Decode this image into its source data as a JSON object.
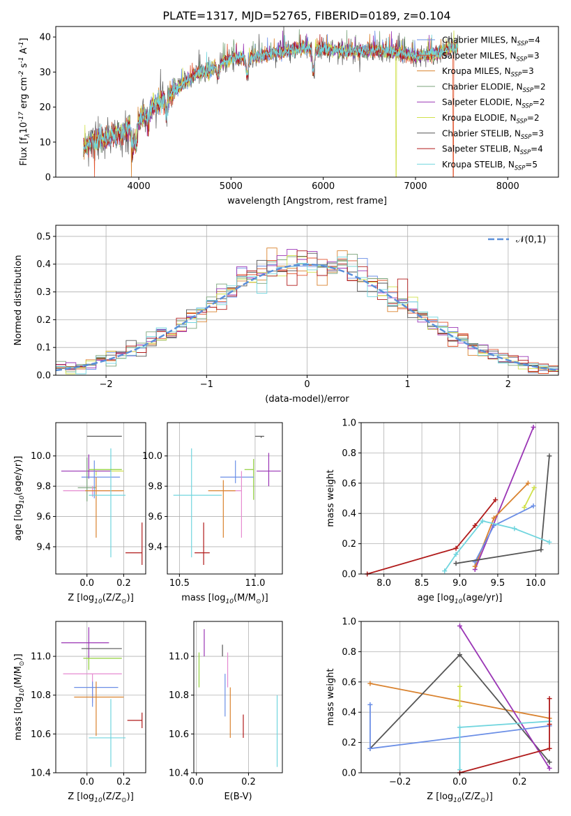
{
  "figure": {
    "title": "PLATE=1317, MJD=52765, FIBERID=0189, z=0.104"
  },
  "colors": {
    "Chabrier MILES": "#6a8ee6",
    "Salpeter MILES": "#e0522b",
    "Kroupa MILES": "#d9822e",
    "Chabrier ELODIE": "#7aa37a",
    "Salpeter ELODIE": "#9a35b5",
    "Kroupa ELODIE": "#cfe04a",
    "Chabrier STELIB": "#555555",
    "Salpeter STELIB": "#b01a1a",
    "Kroupa STELIB": "#70d5de",
    "gaussian": "#5b8fd9",
    "extra_pink": "#e58ad0",
    "extra_green": "#8fcf3a"
  },
  "chart_data": [
    {
      "id": "spectrum",
      "type": "line",
      "title": "PLATE=1317, MJD=52765, FIBERID=0189, z=0.104",
      "xlabel": "wavelength [Angstrom, rest frame]",
      "ylabel": "Flux [f$_\\lambda$10$^{-17}$ erg cm$^{-2}$ s$^{-1}$ A$^{-1}$]",
      "xlim": [
        3100,
        8550
      ],
      "ylim": [
        0,
        43
      ],
      "xticks": [
        4000,
        5000,
        6000,
        7000,
        8000
      ],
      "yticks": [
        0,
        10,
        20,
        30,
        40
      ],
      "legend_position": "upper right",
      "continuum": {
        "wavelength": [
          3400,
          3600,
          3800,
          4000,
          4200,
          4400,
          4600,
          4800,
          5000,
          5200,
          5400,
          5600,
          5800,
          6000,
          6200,
          6400,
          6600,
          6800,
          7000,
          7200,
          7400
        ],
        "flux": [
          9,
          11,
          12,
          16,
          21,
          25,
          29,
          31,
          34,
          34,
          35,
          36,
          37,
          36.5,
          36,
          36,
          36,
          35.5,
          34.5,
          35,
          37
        ]
      },
      "absorption_features": [
        {
          "wavelength": 3934,
          "depth": 7
        },
        {
          "wavelength": 3969,
          "depth": 6
        },
        {
          "wavelength": 4102,
          "depth": 3
        },
        {
          "wavelength": 4304,
          "depth": 5
        },
        {
          "wavelength": 4861,
          "depth": 3
        },
        {
          "wavelength": 5175,
          "depth": 5
        },
        {
          "wavelength": 5893,
          "depth": 7
        }
      ],
      "series": [
        {
          "name": "Chabrier MILES, N$_{SSP}$=4"
        },
        {
          "name": "Salpeter MILES, N$_{SSP}$=3"
        },
        {
          "name": "Kroupa MILES, N$_{SSP}$=3"
        },
        {
          "name": "Chabrier ELODIE, N$_{SSP}$=2"
        },
        {
          "name": "Salpeter ELODIE, N$_{SSP}$=2"
        },
        {
          "name": "Kroupa ELODIE, N$_{SSP}$=2"
        },
        {
          "name": "Chabrier STELIB, N$_{SSP}$=3"
        },
        {
          "name": "Salpeter STELIB, N$_{SSP}$=4"
        },
        {
          "name": "Kroupa STELIB, N$_{SSP}$=5"
        }
      ],
      "spikes_to_zero": [
        {
          "wavelength": 3520,
          "series": "Salpeter MILES"
        },
        {
          "wavelength": 3920,
          "series": "Kroupa MILES"
        },
        {
          "wavelength": 6790,
          "series": "Kroupa ELODIE"
        },
        {
          "wavelength": 7410,
          "series": "Salpeter MILES"
        }
      ]
    },
    {
      "id": "residuals",
      "type": "histogram",
      "xlabel": "(data-model)/error",
      "ylabel": "Normed distribution",
      "xlim": [
        -2.5,
        2.5
      ],
      "ylim": [
        0,
        0.54
      ],
      "xticks": [
        -2,
        -1,
        0,
        1,
        2
      ],
      "yticks": [
        0.0,
        0.1,
        0.2,
        0.3,
        0.4,
        0.5
      ],
      "grid": true,
      "legend_position": "upper right",
      "reference_curve": {
        "name": "$\\mathcal{N}(0,1)$",
        "style": "dashed",
        "mu": 0,
        "sigma": 1
      },
      "bin_width": 0.1,
      "bin_range": [
        -2.5,
        2.5
      ]
    },
    {
      "id": "age_vs_Z",
      "type": "errorbar",
      "xlabel": "Z [log$_{10}$(Z/Z$_\\odot$)]",
      "ylabel": "age  [log$_{10}$(age/yr)]",
      "xlim": [
        -0.17,
        0.32
      ],
      "ylim": [
        9.22,
        10.22
      ],
      "xticks": [
        0.0,
        0.2
      ],
      "yticks": [
        9.4,
        9.6,
        9.8,
        10.0
      ],
      "grid": true,
      "points": [
        {
          "x": 0.0,
          "y": 10.13,
          "xerr": [
            0.0,
            0.19
          ],
          "yerr": [
            0.0,
            0.0
          ],
          "color": "Chabrier STELIB"
        },
        {
          "x": 0.05,
          "y": 9.9,
          "xerr": [
            0.04,
            0.15
          ],
          "yerr": [
            0.03,
            0.0
          ],
          "color": "Kroupa ELODIE"
        },
        {
          "x": 0.01,
          "y": 9.9,
          "xerr": [
            0.15,
            0.12
          ],
          "yerr": [
            0.05,
            0.11
          ],
          "color": "Salpeter ELODIE"
        },
        {
          "x": 0.04,
          "y": 9.86,
          "xerr": [
            0.07,
            0.14
          ],
          "yerr": [
            0.14,
            0.11
          ],
          "color": "Chabrier MILES"
        },
        {
          "x": 0.0,
          "y": 9.79,
          "xerr": [
            0.05,
            0.05
          ],
          "yerr": [
            0.09,
            0.2
          ],
          "color": "Chabrier ELODIE"
        },
        {
          "x": 0.03,
          "y": 9.77,
          "xerr": [
            0.16,
            0.16
          ],
          "yerr": [
            0.04,
            0.03
          ],
          "color": "extra_pink"
        },
        {
          "x": 0.05,
          "y": 9.77,
          "xerr": [
            0.06,
            0.15
          ],
          "yerr": [
            0.31,
            0.09
          ],
          "color": "Kroupa MILES"
        },
        {
          "x": 0.13,
          "y": 9.74,
          "xerr": [
            0.12,
            0.08
          ],
          "yerr": [
            0.41,
            0.31
          ],
          "color": "Kroupa STELIB"
        },
        {
          "x": 0.3,
          "y": 9.36,
          "xerr": [
            0.09,
            0.0
          ],
          "yerr": [
            0.08,
            0.2
          ],
          "color": "Salpeter STELIB"
        },
        {
          "x": 0.01,
          "y": 9.91,
          "xerr": [
            0.0,
            0.18
          ],
          "yerr": [
            0.0,
            0.0
          ],
          "color": "extra_green"
        }
      ]
    },
    {
      "id": "age_vs_mass",
      "type": "errorbar",
      "xlabel": "mass [log$_{10}$(M/M$_\\odot$)]",
      "ylabel": "",
      "xlim": [
        10.42,
        11.18
      ],
      "ylim": [
        9.22,
        10.22
      ],
      "xticks": [
        10.5,
        11.0
      ],
      "yticks": [
        9.4,
        9.6,
        9.8,
        10.0
      ],
      "grid": true,
      "points": [
        {
          "x": 11.04,
          "y": 10.13,
          "xerr": [
            0.04,
            0.02
          ],
          "yerr": [
            0.01,
            0.0
          ],
          "color": "Chabrier STELIB"
        },
        {
          "x": 11.09,
          "y": 9.9,
          "xerr": [
            0.08,
            0.08
          ],
          "yerr": [
            0.1,
            0.12
          ],
          "color": "Salpeter ELODIE"
        },
        {
          "x": 10.99,
          "y": 9.91,
          "xerr": [
            0.06,
            0.0
          ],
          "yerr": [
            0.2,
            0.07
          ],
          "color": "extra_green"
        },
        {
          "x": 10.87,
          "y": 9.86,
          "xerr": [
            0.1,
            0.12
          ],
          "yerr": [
            0.04,
            0.11
          ],
          "color": "Chabrier MILES"
        },
        {
          "x": 10.91,
          "y": 9.77,
          "xerr": [
            0.12,
            0.0
          ],
          "yerr": [
            0.31,
            0.13
          ],
          "color": "extra_pink"
        },
        {
          "x": 10.79,
          "y": 9.77,
          "xerr": [
            0.1,
            0.08
          ],
          "yerr": [
            0.31,
            0.07
          ],
          "color": "Kroupa MILES"
        },
        {
          "x": 10.58,
          "y": 9.74,
          "xerr": [
            0.12,
            0.2
          ],
          "yerr": [
            0.41,
            0.31
          ],
          "color": "Kroupa STELIB"
        },
        {
          "x": 10.66,
          "y": 9.36,
          "xerr": [
            0.06,
            0.04
          ],
          "yerr": [
            0.08,
            0.2
          ],
          "color": "Salpeter STELIB"
        }
      ]
    },
    {
      "id": "massweight_vs_age",
      "type": "line",
      "xlabel": "age  [log$_{10}$(age/yr)]",
      "ylabel": "mass weight",
      "xlim": [
        7.7,
        10.3
      ],
      "ylim": [
        0,
        1
      ],
      "xticks": [
        8.0,
        8.5,
        9.0,
        9.5,
        10.0
      ],
      "yticks": [
        0.0,
        0.2,
        0.4,
        0.6,
        0.8,
        1.0
      ],
      "grid": true,
      "series": [
        {
          "name": "Salpeter STELIB",
          "x": [
            7.78,
            8.95,
            9.2,
            9.47
          ],
          "y": [
            0.0,
            0.17,
            0.32,
            0.49
          ]
        },
        {
          "name": "Salpeter ELODIE",
          "x": [
            9.2,
            9.97
          ],
          "y": [
            0.03,
            0.97
          ]
        },
        {
          "name": "Kroupa MILES",
          "x": [
            9.2,
            9.45,
            9.9
          ],
          "y": [
            0.05,
            0.37,
            0.6
          ]
        },
        {
          "name": "Kroupa ELODIE",
          "x": [
            9.85,
            9.98
          ],
          "y": [
            0.44,
            0.57
          ]
        },
        {
          "name": "Chabrier MILES",
          "x": [
            9.2,
            9.45,
            9.97
          ],
          "y": [
            0.08,
            0.32,
            0.45
          ]
        },
        {
          "name": "Chabrier STELIB",
          "x": [
            8.95,
            10.07,
            10.18
          ],
          "y": [
            0.07,
            0.16,
            0.78
          ]
        },
        {
          "name": "Kroupa STELIB",
          "x": [
            8.8,
            8.95,
            9.3,
            9.72,
            10.18
          ],
          "y": [
            0.02,
            0.13,
            0.35,
            0.3,
            0.21
          ]
        }
      ]
    },
    {
      "id": "mass_vs_Z",
      "type": "errorbar",
      "xlabel": "Z [log$_{10}$(Z/Z$_\\odot$)]",
      "ylabel": "mass [log$_{10}$(M/M$_\\odot$)]",
      "xlim": [
        -0.17,
        0.32
      ],
      "ylim": [
        10.4,
        11.18
      ],
      "xticks": [
        0.0,
        0.2
      ],
      "yticks": [
        10.4,
        10.6,
        10.8,
        11.0
      ],
      "grid": true,
      "points": [
        {
          "x": 0.01,
          "y": 11.07,
          "xerr": [
            0.15,
            0.11
          ],
          "yerr": [
            0.08,
            0.08
          ],
          "color": "Salpeter ELODIE"
        },
        {
          "x": 0.0,
          "y": 11.04,
          "xerr": [
            0.03,
            0.19
          ],
          "yerr": [
            0.0,
            0.0
          ],
          "color": "Chabrier STELIB"
        },
        {
          "x": 0.01,
          "y": 10.99,
          "xerr": [
            0.03,
            0.18
          ],
          "yerr": [
            0.06,
            0.0
          ],
          "color": "extra_green"
        },
        {
          "x": 0.03,
          "y": 10.91,
          "xerr": [
            0.16,
            0.16
          ],
          "yerr": [
            0.15,
            0.0
          ],
          "color": "extra_pink"
        },
        {
          "x": 0.03,
          "y": 10.84,
          "xerr": [
            0.1,
            0.14
          ],
          "yerr": [
            0.1,
            0.03
          ],
          "color": "Chabrier MILES"
        },
        {
          "x": 0.05,
          "y": 10.79,
          "xerr": [
            0.12,
            0.15
          ],
          "yerr": [
            0.2,
            0.08
          ],
          "color": "Kroupa MILES"
        },
        {
          "x": 0.13,
          "y": 10.58,
          "xerr": [
            0.12,
            0.08
          ],
          "yerr": [
            0.15,
            0.2
          ],
          "color": "Kroupa STELIB"
        },
        {
          "x": 0.3,
          "y": 10.67,
          "xerr": [
            0.08,
            0.0
          ],
          "yerr": [
            0.04,
            0.04
          ],
          "color": "Salpeter STELIB"
        }
      ]
    },
    {
      "id": "mass_vs_EBV",
      "type": "errorbar",
      "xlabel": "E(B-V)",
      "ylabel": "",
      "xlim": [
        -0.01,
        0.33
      ],
      "ylim": [
        10.4,
        11.18
      ],
      "xticks": [
        0.0,
        0.2
      ],
      "yticks": [
        10.4,
        10.6,
        10.8,
        11.0
      ],
      "grid": true,
      "points": [
        {
          "x": 0.03,
          "y": 11.07,
          "xerr": [
            0.0,
            0.0
          ],
          "yerr": [
            0.07,
            0.07
          ],
          "color": "Salpeter ELODIE"
        },
        {
          "x": 0.1,
          "y": 11.04,
          "xerr": [
            0.0,
            0.0
          ],
          "yerr": [
            0.04,
            0.02
          ],
          "color": "Chabrier STELIB"
        },
        {
          "x": 0.01,
          "y": 10.99,
          "xerr": [
            0.0,
            0.0
          ],
          "yerr": [
            0.15,
            0.03
          ],
          "color": "extra_green"
        },
        {
          "x": 0.12,
          "y": 10.91,
          "xerr": [
            0.0,
            0.0
          ],
          "yerr": [
            0.07,
            0.11
          ],
          "color": "extra_pink"
        },
        {
          "x": 0.11,
          "y": 10.84,
          "xerr": [
            0.0,
            0.0
          ],
          "yerr": [
            0.15,
            0.07
          ],
          "color": "Chabrier MILES"
        },
        {
          "x": 0.13,
          "y": 10.79,
          "xerr": [
            0.0,
            0.0
          ],
          "yerr": [
            0.21,
            0.05
          ],
          "color": "Kroupa MILES"
        },
        {
          "x": 0.18,
          "y": 10.63,
          "xerr": [
            0.0,
            0.0
          ],
          "yerr": [
            0.05,
            0.07
          ],
          "color": "Salpeter STELIB"
        },
        {
          "x": 0.31,
          "y": 10.58,
          "xerr": [
            0.0,
            0.0
          ],
          "yerr": [
            0.15,
            0.22
          ],
          "color": "Kroupa STELIB"
        }
      ]
    },
    {
      "id": "massweight_vs_Z",
      "type": "line",
      "xlabel": "Z [log$_{10}$(Z/Z$_\\odot$)]",
      "ylabel": "mass weight",
      "xlim": [
        -0.33,
        0.33
      ],
      "ylim": [
        0,
        1
      ],
      "xticks": [
        -0.2,
        0.0,
        0.2
      ],
      "yticks": [
        0.0,
        0.2,
        0.4,
        0.6,
        0.8,
        1.0
      ],
      "grid": true,
      "series": [
        {
          "name": "Kroupa MILES",
          "x": [
            -0.3,
            0.3
          ],
          "y": [
            0.59,
            0.36
          ]
        },
        {
          "name": "Chabrier STELIB",
          "x": [
            -0.3,
            0.0,
            0.3
          ],
          "y": [
            0.16,
            0.78,
            0.07
          ]
        },
        {
          "name": "Salpeter ELODIE",
          "x": [
            0.0,
            0.3
          ],
          "y": [
            0.97,
            0.03
          ]
        },
        {
          "name": "Chabrier MILES",
          "x": [
            -0.3,
            -0.3,
            0.3
          ],
          "y": [
            0.45,
            0.16,
            0.31
          ]
        },
        {
          "name": "Kroupa STELIB",
          "x": [
            0.0,
            0.0,
            0.3
          ],
          "y": [
            0.02,
            0.3,
            0.34
          ]
        },
        {
          "name": "Kroupa ELODIE",
          "x": [
            0.0,
            0.0
          ],
          "y": [
            0.44,
            0.57
          ]
        },
        {
          "name": "Salpeter STELIB",
          "x": [
            0.0,
            0.3,
            0.3,
            0.3
          ],
          "y": [
            0.0,
            0.16,
            0.32,
            0.49
          ]
        }
      ]
    }
  ]
}
